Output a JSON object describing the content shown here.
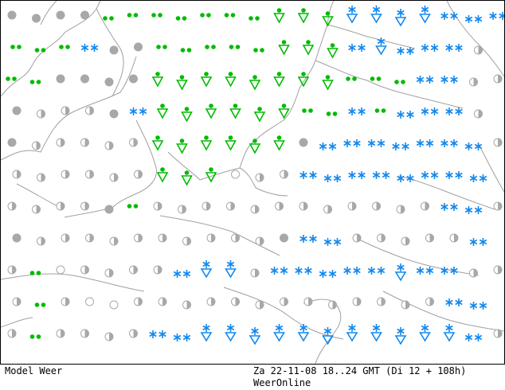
{
  "footer": {
    "model_label": "Model Weer",
    "run_info": "Za 22-11-08 18..24 GMT (Di 12 + 108h)",
    "brand": "WeerOnline"
  },
  "colors": {
    "rain": "#00bb00",
    "snow": "#1188ee",
    "cloud": "#a8a8a8",
    "coast": "#a0a0a0",
    "frame": "#000000"
  },
  "legend_symbols": {
    "rain": "rain-dots",
    "rain_shower": "rain-shower-triangle",
    "snow": "snow-asterisks",
    "snow_shower": "snow-shower-triangle",
    "overcast": "overcast-disc",
    "partly_cloudy": "half-disc",
    "clear": "open-circle"
  },
  "grid_rows": [
    [
      "cloud",
      "cloud",
      "cloud",
      "cloud",
      "rain",
      "rain",
      "rain",
      "rain",
      "rain",
      "rain",
      "rain",
      "rain_shower",
      "rain_shower",
      "rain_shower",
      "snow_shower",
      "snow_shower",
      "snow_shower",
      "snow_shower",
      "snow",
      "snow",
      "snow"
    ],
    [
      "rain",
      "rain",
      "rain",
      "snow",
      "cloud",
      "cloud",
      "rain",
      "rain",
      "rain",
      "rain",
      "rain",
      "rain_shower",
      "rain_shower",
      "rain_shower",
      "snow",
      "snow_shower",
      "snow",
      "snow",
      "snow",
      "half",
      "half"
    ],
    [
      "rain",
      "rain",
      "cloud",
      "cloud",
      "cloud",
      "cloud",
      "rain_shower",
      "rain_shower",
      "rain_shower",
      "rain_shower",
      "rain_shower",
      "rain_shower",
      "rain_shower",
      "rain_shower",
      "rain",
      "rain",
      "rain",
      "snow",
      "snow",
      "half",
      "half"
    ],
    [
      "cloud",
      "half",
      "half",
      "half",
      "cloud",
      "snow",
      "rain_shower",
      "rain_shower",
      "rain_shower",
      "rain_shower",
      "rain_shower",
      "rain_shower",
      "rain",
      "rain",
      "snow",
      "rain",
      "snow",
      "snow",
      "snow",
      "half",
      "half"
    ],
    [
      "cloud",
      "half",
      "half",
      "half",
      "half",
      "half",
      "rain_shower",
      "rain_shower",
      "rain_shower",
      "rain_shower",
      "rain_shower",
      "rain_shower",
      "cloud",
      "snow",
      "snow",
      "snow",
      "snow",
      "snow",
      "snow",
      "snow",
      "half"
    ],
    [
      "half",
      "half",
      "half",
      "half",
      "half",
      "half",
      "rain_shower",
      "rain_shower",
      "rain_shower",
      "clear",
      "half",
      "half",
      "snow",
      "snow",
      "snow",
      "snow",
      "snow",
      "snow",
      "snow",
      "snow",
      "snow"
    ],
    [
      "half",
      "half",
      "half",
      "half",
      "cloud",
      "rain",
      "half",
      "half",
      "half",
      "half",
      "half",
      "half",
      "half",
      "half",
      "half",
      "half",
      "half",
      "half",
      "snow",
      "snow",
      "half"
    ],
    [
      "cloud",
      "half",
      "half",
      "half",
      "half",
      "half",
      "half",
      "half",
      "half",
      "half",
      "half",
      "cloud",
      "snow",
      "snow",
      "half",
      "half",
      "half",
      "half",
      "half",
      "snow",
      "half"
    ],
    [
      "half",
      "rain",
      "clear",
      "half",
      "half",
      "half",
      "half",
      "snow",
      "snow_shower",
      "snow_shower",
      "half",
      "snow",
      "snow",
      "snow",
      "snow",
      "snow",
      "snow_shower",
      "snow",
      "snow",
      "half",
      "half"
    ],
    [
      "half",
      "rain",
      "half",
      "clear",
      "clear",
      "half",
      "half",
      "half",
      "half",
      "half",
      "half",
      "half",
      "half",
      "half",
      "half",
      "half",
      "half",
      "half",
      "snow",
      "snow",
      "half"
    ],
    [
      "half",
      "rain",
      "half",
      "half",
      "half",
      "half",
      "snow",
      "snow",
      "snow_shower",
      "snow_shower",
      "snow_shower",
      "snow_shower",
      "snow_shower",
      "snow_shower",
      "snow_shower",
      "snow_shower",
      "snow_shower",
      "snow_shower",
      "snow_shower",
      "snow",
      "half"
    ]
  ]
}
